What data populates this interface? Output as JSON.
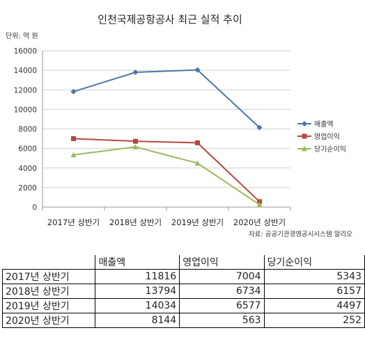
{
  "chart_data": {
    "type": "line",
    "title": "인천국제공항공사 최근 실적 추이",
    "unit_label": "단위: 억 원",
    "categories": [
      "2017년 상반기",
      "2018년 상반기",
      "2019년 상반기",
      "2020년 상반기"
    ],
    "ylim": [
      0,
      16000
    ],
    "yticks": [
      0,
      2000,
      4000,
      6000,
      8000,
      10000,
      12000,
      14000,
      16000
    ],
    "grid": true,
    "legend_position": "right",
    "series": [
      {
        "name": "매출액",
        "values": [
          11816,
          13794,
          14034,
          8144
        ],
        "color": "#4a77a8",
        "marker": "diamond"
      },
      {
        "name": "영업이익",
        "values": [
          7004,
          6734,
          6577,
          563
        ],
        "color": "#b5473f",
        "marker": "square"
      },
      {
        "name": "당기순이익",
        "values": [
          5343,
          6157,
          4497,
          252
        ],
        "color": "#9aba5b",
        "marker": "triangle"
      }
    ],
    "source": "자료: 공공기관경영공시시스템 알리오"
  },
  "table": {
    "headers": [
      "매출액",
      "영업이익",
      "당기순이익"
    ],
    "rows": [
      {
        "label": "2017년 상반기",
        "values": [
          "11816",
          "7004",
          "5343"
        ]
      },
      {
        "label": "2018년 상반기",
        "values": [
          "13794",
          "6734",
          "6157"
        ]
      },
      {
        "label": "2019년 상반기",
        "values": [
          "14034",
          "6577",
          "4497"
        ]
      },
      {
        "label": "2020년 상반기",
        "values": [
          "8144",
          "563",
          "252"
        ]
      }
    ]
  }
}
